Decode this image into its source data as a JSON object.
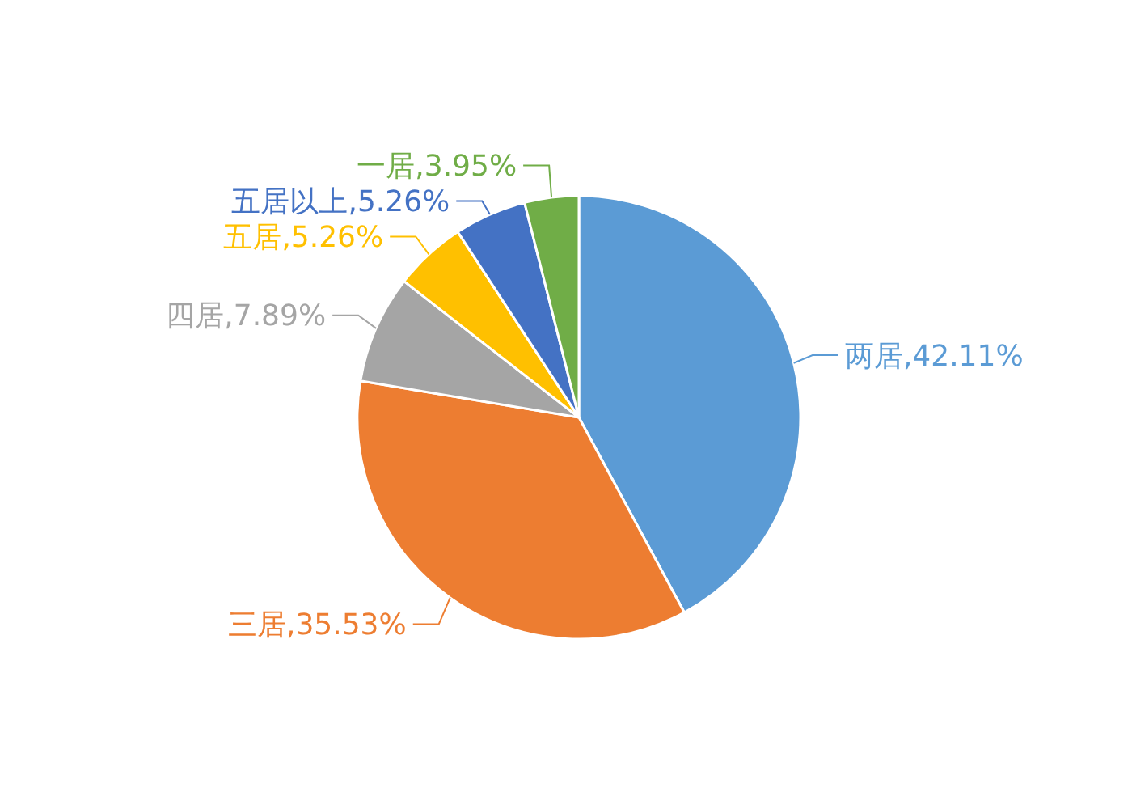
{
  "chart_data": {
    "type": "pie",
    "categories": [
      "两居",
      "三居",
      "四居",
      "五居",
      "五居以上",
      "一居"
    ],
    "values": [
      42.11,
      35.53,
      7.89,
      5.26,
      5.26,
      3.95
    ],
    "value_labels": [
      "42.11%",
      "35.53%",
      "7.89%",
      "5.26%",
      "5.26%",
      "3.95%"
    ],
    "colors": [
      "#5b9bd5",
      "#ed7d31",
      "#a5a5a5",
      "#ffc000",
      "#4472c4",
      "#70ad47"
    ]
  }
}
